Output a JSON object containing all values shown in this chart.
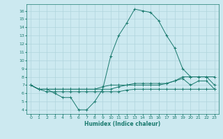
{
  "xlabel": "Humidex (Indice chaleur)",
  "bg_color": "#cce9f0",
  "grid_color": "#b0d4dc",
  "line_color": "#1a7a6e",
  "xlim": [
    -0.5,
    23.5
  ],
  "ylim": [
    3.5,
    16.8
  ],
  "yticks": [
    4,
    5,
    6,
    7,
    8,
    9,
    10,
    11,
    12,
    13,
    14,
    15,
    16
  ],
  "xticks": [
    0,
    1,
    2,
    3,
    4,
    5,
    6,
    7,
    8,
    9,
    10,
    11,
    12,
    13,
    14,
    15,
    16,
    17,
    18,
    19,
    20,
    21,
    22,
    23
  ],
  "series": [
    [
      7,
      6.5,
      6.5,
      6,
      5.5,
      5.5,
      4,
      4,
      5,
      6.5,
      10.5,
      13,
      14.5,
      16.2,
      16,
      15.8,
      14.8,
      13,
      11.5,
      9,
      8,
      8,
      8,
      8
    ],
    [
      7,
      6.5,
      6.5,
      6.5,
      6.5,
      6.5,
      6.5,
      6.5,
      6.5,
      6.5,
      6.5,
      6.8,
      7,
      7,
      7,
      7,
      7,
      7.2,
      7.5,
      7.8,
      7,
      7.5,
      7.5,
      6.5
    ],
    [
      7,
      6.5,
      6.2,
      6.2,
      6.2,
      6.2,
      6.2,
      6.2,
      6.2,
      6.2,
      6.2,
      6.2,
      6.4,
      6.5,
      6.5,
      6.5,
      6.5,
      6.5,
      6.5,
      6.5,
      6.5,
      6.5,
      6.5,
      6.5
    ],
    [
      7,
      6.5,
      6.5,
      6.5,
      6.5,
      6.5,
      6.5,
      6.5,
      6.5,
      6.8,
      7,
      7,
      7,
      7.2,
      7.2,
      7.2,
      7.2,
      7.2,
      7.5,
      8,
      8,
      8,
      8,
      7
    ]
  ]
}
